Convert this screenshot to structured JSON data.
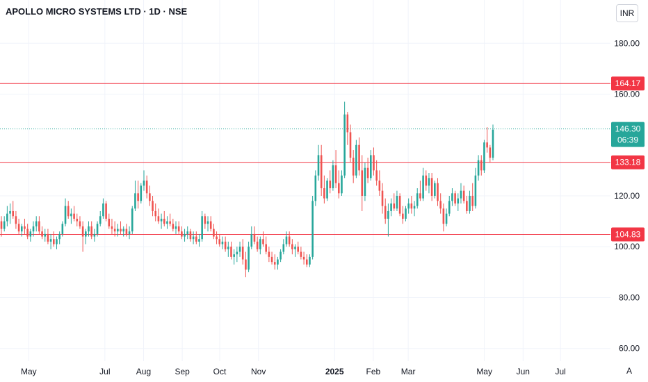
{
  "header": {
    "title": "APOLLO MICRO SYSTEMS LTD · 1D · NSE",
    "currency": "INR",
    "scale_mode": "A"
  },
  "colors": {
    "up": "#26a69a",
    "down": "#ef5350",
    "level_line": "#f23645",
    "grid": "#f0f3fa",
    "price_line": "#26a69a"
  },
  "chart_data": {
    "type": "candlestick",
    "ylim": [
      55,
      197
    ],
    "y_ticks": [
      "60.00",
      "80.00",
      "100.00",
      "120.00",
      "160.00",
      "180.00"
    ],
    "x_ticks": [
      "May",
      "Jul",
      "Aug",
      "Sep",
      "Oct",
      "Nov",
      "2025",
      "Feb",
      "Mar",
      "May",
      "Jun",
      "Jul"
    ],
    "x_ticks_bold": [
      "2025"
    ],
    "x_range": [
      "2024-04-08",
      "2025-08-10"
    ],
    "x_tick_dates": [
      "2024-05-01",
      "2024-07-01",
      "2024-08-01",
      "2024-09-01",
      "2024-10-01",
      "2024-11-01",
      "2025-01-01",
      "2025-02-01",
      "2025-03-01",
      "2025-05-01",
      "2025-06-01",
      "2025-07-01"
    ],
    "horizontal_levels": [
      164.17,
      133.18,
      104.83
    ],
    "horizontal_level_labels": [
      "164.17",
      "133.18",
      "104.83"
    ],
    "last_price": 146.3,
    "last_price_label": "146.30",
    "countdown": "06:39",
    "candles": [
      [
        110,
        112,
        104,
        107
      ],
      [
        107,
        112,
        106,
        110
      ],
      [
        110,
        116,
        108,
        113
      ],
      [
        113,
        117,
        109,
        114
      ],
      [
        114,
        118,
        111,
        112
      ],
      [
        112,
        114,
        107,
        109
      ],
      [
        109,
        111,
        105,
        106
      ],
      [
        106,
        109,
        104,
        108
      ],
      [
        108,
        111,
        105,
        107
      ],
      [
        107,
        109,
        103,
        104
      ],
      [
        104,
        107,
        102,
        106
      ],
      [
        106,
        110,
        104,
        108
      ],
      [
        108,
        112,
        106,
        110
      ],
      [
        110,
        112,
        105,
        106
      ],
      [
        106,
        108,
        103,
        104
      ],
      [
        104,
        107,
        102,
        105
      ],
      [
        105,
        107,
        101,
        102
      ],
      [
        102,
        105,
        99,
        103
      ],
      [
        103,
        106,
        100,
        101
      ],
      [
        101,
        104,
        99,
        103
      ],
      [
        103,
        106,
        101,
        105
      ],
      [
        105,
        110,
        104,
        109
      ],
      [
        109,
        119,
        108,
        116
      ],
      [
        116,
        118,
        111,
        112
      ],
      [
        112,
        115,
        109,
        113
      ],
      [
        113,
        116,
        110,
        111
      ],
      [
        111,
        113,
        108,
        110
      ],
      [
        110,
        112,
        107,
        108
      ],
      [
        108,
        110,
        98,
        104
      ],
      [
        104,
        107,
        101,
        106
      ],
      [
        106,
        110,
        104,
        108
      ],
      [
        108,
        110,
        103,
        104
      ],
      [
        104,
        107,
        102,
        105
      ],
      [
        105,
        110,
        104,
        109
      ],
      [
        109,
        114,
        108,
        112
      ],
      [
        112,
        119,
        111,
        117
      ],
      [
        117,
        118,
        110,
        111
      ],
      [
        111,
        113,
        107,
        108
      ],
      [
        108,
        111,
        105,
        107
      ],
      [
        107,
        110,
        104,
        106
      ],
      [
        106,
        109,
        104,
        107
      ],
      [
        107,
        110,
        105,
        106
      ],
      [
        106,
        108,
        104,
        107
      ],
      [
        107,
        109,
        104,
        105
      ],
      [
        105,
        108,
        103,
        106
      ],
      [
        106,
        116,
        105,
        115
      ],
      [
        115,
        126,
        114,
        121
      ],
      [
        121,
        126,
        115,
        118
      ],
      [
        118,
        125,
        117,
        124
      ],
      [
        124,
        130,
        122,
        126
      ],
      [
        126,
        128,
        119,
        121
      ],
      [
        121,
        124,
        116,
        118
      ],
      [
        118,
        120,
        112,
        114
      ],
      [
        114,
        117,
        110,
        112
      ],
      [
        112,
        115,
        109,
        110
      ],
      [
        110,
        113,
        107,
        111
      ],
      [
        111,
        114,
        108,
        109
      ],
      [
        109,
        112,
        107,
        110
      ],
      [
        110,
        113,
        108,
        109
      ],
      [
        109,
        111,
        106,
        107
      ],
      [
        107,
        110,
        105,
        108
      ],
      [
        108,
        110,
        105,
        106
      ],
      [
        106,
        108,
        103,
        104
      ],
      [
        104,
        107,
        102,
        105
      ],
      [
        105,
        108,
        103,
        106
      ],
      [
        106,
        107,
        102,
        103
      ],
      [
        103,
        106,
        101,
        104
      ],
      [
        104,
        106,
        101,
        102
      ],
      [
        102,
        105,
        100,
        103
      ],
      [
        103,
        114,
        102,
        112
      ],
      [
        112,
        113,
        107,
        109
      ],
      [
        109,
        112,
        106,
        110
      ],
      [
        110,
        112,
        106,
        107
      ],
      [
        107,
        109,
        103,
        104
      ],
      [
        104,
        106,
        101,
        103
      ],
      [
        103,
        105,
        100,
        101
      ],
      [
        101,
        104,
        99,
        102
      ],
      [
        102,
        104,
        98,
        99
      ],
      [
        99,
        102,
        96,
        100
      ],
      [
        100,
        102,
        95,
        96
      ],
      [
        96,
        99,
        93,
        97
      ],
      [
        97,
        100,
        94,
        98
      ],
      [
        98,
        102,
        96,
        100
      ],
      [
        100,
        103,
        93,
        95
      ],
      [
        95,
        98,
        88,
        91
      ],
      [
        91,
        102,
        90,
        100
      ],
      [
        100,
        108,
        99,
        105
      ],
      [
        105,
        108,
        101,
        102
      ],
      [
        102,
        104,
        98,
        99
      ],
      [
        99,
        104,
        97,
        103
      ],
      [
        103,
        106,
        100,
        101
      ],
      [
        101,
        104,
        97,
        98
      ],
      [
        98,
        100,
        94,
        96
      ],
      [
        96,
        98,
        93,
        94
      ],
      [
        94,
        97,
        91,
        93
      ],
      [
        93,
        96,
        91,
        95
      ],
      [
        95,
        99,
        94,
        98
      ],
      [
        98,
        103,
        97,
        101
      ],
      [
        101,
        106,
        100,
        104
      ],
      [
        104,
        106,
        100,
        101
      ],
      [
        101,
        103,
        97,
        99
      ],
      [
        99,
        101,
        96,
        100
      ],
      [
        100,
        102,
        97,
        98
      ],
      [
        98,
        100,
        95,
        96
      ],
      [
        96,
        98,
        93,
        95
      ],
      [
        95,
        97,
        92,
        93
      ],
      [
        93,
        97,
        92,
        96
      ],
      [
        96,
        120,
        95,
        118
      ],
      [
        118,
        130,
        116,
        128
      ],
      [
        128,
        140,
        126,
        136
      ],
      [
        136,
        140,
        120,
        123
      ],
      [
        123,
        128,
        117,
        119
      ],
      [
        119,
        127,
        118,
        126
      ],
      [
        126,
        130,
        121,
        123
      ],
      [
        123,
        134,
        122,
        132
      ],
      [
        132,
        138,
        123,
        125
      ],
      [
        125,
        130,
        119,
        121
      ],
      [
        121,
        130,
        120,
        128
      ],
      [
        128,
        157,
        127,
        152
      ],
      [
        152,
        153,
        140,
        145
      ],
      [
        145,
        148,
        133,
        135
      ],
      [
        135,
        138,
        125,
        128
      ],
      [
        128,
        142,
        127,
        140
      ],
      [
        140,
        143,
        128,
        130
      ],
      [
        130,
        136,
        114,
        120
      ],
      [
        120,
        133,
        118,
        131
      ],
      [
        131,
        135,
        125,
        127
      ],
      [
        127,
        138,
        126,
        136
      ],
      [
        136,
        139,
        128,
        130
      ],
      [
        130,
        134,
        124,
        126
      ],
      [
        126,
        130,
        120,
        122
      ],
      [
        122,
        125,
        113,
        116
      ],
      [
        116,
        119,
        109,
        111
      ],
      [
        111,
        117,
        104,
        114
      ],
      [
        114,
        119,
        112,
        117
      ],
      [
        117,
        121,
        114,
        115
      ],
      [
        115,
        122,
        114,
        120
      ],
      [
        120,
        121,
        112,
        113
      ],
      [
        113,
        116,
        109,
        111
      ],
      [
        111,
        116,
        110,
        115
      ],
      [
        115,
        119,
        113,
        117
      ],
      [
        117,
        120,
        113,
        115
      ],
      [
        115,
        118,
        112,
        116
      ],
      [
        116,
        123,
        115,
        121
      ],
      [
        121,
        126,
        118,
        119
      ],
      [
        119,
        131,
        118,
        128
      ],
      [
        128,
        130,
        122,
        124
      ],
      [
        124,
        129,
        121,
        127
      ],
      [
        127,
        129,
        118,
        120
      ],
      [
        120,
        126,
        119,
        125
      ],
      [
        125,
        127,
        116,
        118
      ],
      [
        118,
        121,
        113,
        115
      ],
      [
        115,
        117,
        106,
        109
      ],
      [
        109,
        115,
        108,
        113
      ],
      [
        113,
        120,
        112,
        118
      ],
      [
        118,
        123,
        116,
        121
      ],
      [
        121,
        122,
        116,
        117
      ],
      [
        117,
        121,
        114,
        119
      ],
      [
        119,
        125,
        117,
        122
      ],
      [
        122,
        124,
        117,
        118
      ],
      [
        118,
        120,
        113,
        114
      ],
      [
        114,
        122,
        113,
        120
      ],
      [
        120,
        125,
        114,
        116
      ],
      [
        116,
        131,
        115,
        128
      ],
      [
        128,
        136,
        126,
        134
      ],
      [
        134,
        136,
        128,
        130
      ],
      [
        130,
        142,
        129,
        141
      ],
      [
        141,
        147,
        137,
        139
      ],
      [
        139,
        140,
        133,
        135
      ],
      [
        135,
        148,
        134,
        146
      ]
    ]
  }
}
